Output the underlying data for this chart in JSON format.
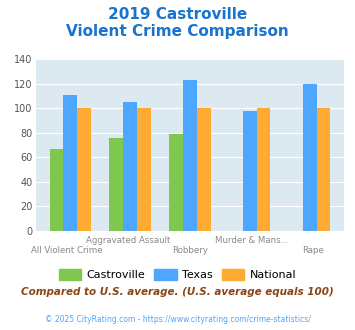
{
  "title_line1": "2019 Castroville",
  "title_line2": "Violent Crime Comparison",
  "title_color": "#1874cd",
  "x_labels_top": [
    "",
    "Aggravated Assault",
    "",
    "Murder & Mans...",
    ""
  ],
  "x_labels_bottom": [
    "All Violent Crime",
    "",
    "Robbery",
    "",
    "Rape"
  ],
  "castroville": [
    67,
    76,
    79,
    0,
    0
  ],
  "texas": [
    111,
    105,
    123,
    98,
    120
  ],
  "national": [
    100,
    100,
    100,
    100,
    100
  ],
  "castroville_color": "#7ec850",
  "texas_color": "#4da6ff",
  "national_color": "#ffaa33",
  "background_color": "#dce9f0",
  "ylim": [
    0,
    140
  ],
  "yticks": [
    0,
    20,
    40,
    60,
    80,
    100,
    120,
    140
  ],
  "footer_text": "Compared to U.S. average. (U.S. average equals 100)",
  "footer_color": "#8b4513",
  "copyright_text": "© 2025 CityRating.com - https://www.cityrating.com/crime-statistics/",
  "copyright_color": "#4da6ff",
  "legend_labels": [
    "Castroville",
    "Texas",
    "National"
  ]
}
